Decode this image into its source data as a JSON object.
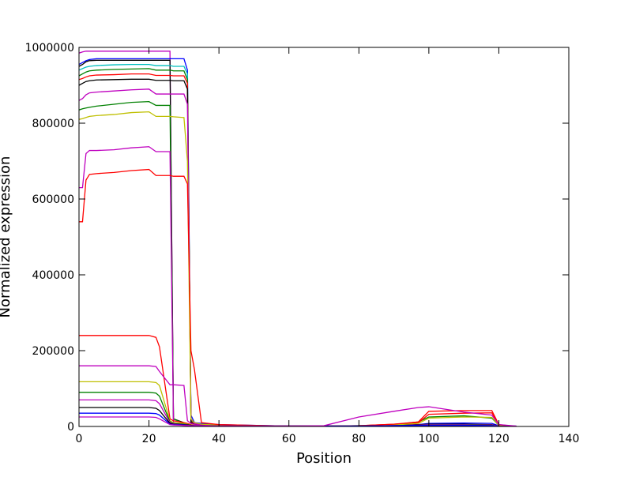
{
  "chart_data": {
    "type": "line",
    "xlabel": "Position",
    "ylabel": "Normalized expression",
    "xlim": [
      0,
      140
    ],
    "ylim": [
      0,
      1000000
    ],
    "xticks": [
      0,
      20,
      40,
      60,
      80,
      100,
      120,
      140
    ],
    "yticks": [
      0,
      200000,
      400000,
      600000,
      800000,
      1000000
    ],
    "grid": false,
    "x": [
      0,
      1,
      2,
      3,
      5,
      10,
      15,
      20,
      22,
      23,
      26,
      27,
      30,
      31,
      32,
      33,
      35,
      40,
      60,
      70,
      80,
      90,
      97,
      100,
      110,
      118,
      120,
      125
    ],
    "series": [
      {
        "color": "#bf00bf",
        "values": [
          985000,
          988000,
          990000,
          990000,
          990000,
          990000,
          990000,
          990000,
          990000,
          990000,
          990000,
          5000,
          3000,
          2000,
          2000,
          2000,
          2000,
          1000,
          1000,
          1000,
          1000,
          2000,
          3000,
          3000,
          3000,
          2000,
          0,
          0
        ]
      },
      {
        "color": "#0000ff",
        "values": [
          955000,
          960000,
          965000,
          968000,
          970000,
          970000,
          970000,
          970000,
          970000,
          970000,
          970000,
          970000,
          970000,
          940000,
          30000,
          10000,
          8000,
          5000,
          1000,
          1000,
          2000,
          3000,
          5000,
          8000,
          9000,
          8000,
          2000,
          1000
        ]
      },
      {
        "color": "#000000",
        "values": [
          950000,
          955000,
          962000,
          965000,
          966000,
          966000,
          966000,
          966000,
          966000,
          966000,
          966000,
          20000,
          10000,
          5000,
          3000,
          2000,
          2000,
          1000,
          1000,
          1000,
          1000,
          2000,
          3000,
          4000,
          4000,
          3000,
          0,
          0
        ]
      },
      {
        "color": "#00bfbf",
        "values": [
          940000,
          944000,
          948000,
          950000,
          952000,
          954000,
          955000,
          955000,
          952000,
          952000,
          952000,
          950000,
          950000,
          930000,
          20000,
          8000,
          5000,
          3000,
          1000,
          1000,
          1000,
          2000,
          3000,
          4000,
          4000,
          3000,
          0,
          0
        ]
      },
      {
        "color": "#008000",
        "values": [
          925000,
          930000,
          935000,
          938000,
          940000,
          942000,
          943000,
          944000,
          940000,
          940000,
          940000,
          938000,
          938000,
          915000,
          15000,
          8000,
          5000,
          3000,
          1000,
          1000,
          2000,
          5000,
          12000,
          25000,
          28000,
          22000,
          3000,
          0
        ]
      },
      {
        "color": "#ff0000",
        "values": [
          915000,
          918000,
          922000,
          925000,
          927000,
          928000,
          930000,
          930000,
          926000,
          926000,
          926000,
          925000,
          925000,
          905000,
          12000,
          6000,
          4000,
          3000,
          1000,
          1000,
          2000,
          6000,
          10000,
          32000,
          35000,
          36000,
          4000,
          0
        ]
      },
      {
        "color": "#000000",
        "values": [
          900000,
          905000,
          910000,
          912000,
          914000,
          915000,
          916000,
          916000,
          913000,
          913000,
          913000,
          912000,
          912000,
          890000,
          10000,
          5000,
          3000,
          2000,
          1000,
          1000,
          1000,
          3000,
          5000,
          6000,
          6000,
          5000,
          1000,
          0
        ]
      },
      {
        "color": "#bf00bf",
        "values": [
          860000,
          865000,
          875000,
          880000,
          882000,
          885000,
          888000,
          890000,
          877000,
          877000,
          877000,
          877000,
          877000,
          850000,
          20000,
          8000,
          5000,
          3000,
          1000,
          1000,
          1000,
          2000,
          4000,
          5000,
          5000,
          4000,
          1000,
          0
        ]
      },
      {
        "color": "#008000",
        "values": [
          835000,
          838000,
          840000,
          842000,
          845000,
          850000,
          855000,
          857000,
          847000,
          847000,
          847000,
          20000,
          8000,
          5000,
          3000,
          2000,
          2000,
          1000,
          1000,
          1000,
          1000,
          2000,
          3000,
          4000,
          4000,
          3000,
          0,
          0
        ]
      },
      {
        "color": "#bfbf00",
        "values": [
          810000,
          812000,
          815000,
          818000,
          820000,
          823000,
          828000,
          830000,
          818000,
          818000,
          818000,
          817000,
          815000,
          700000,
          20000,
          10000,
          6000,
          3000,
          1000,
          1000,
          2000,
          4000,
          8000,
          22000,
          25000,
          24000,
          3000,
          0
        ]
      },
      {
        "color": "#bf00bf",
        "values": [
          630000,
          630000,
          720000,
          728000,
          728000,
          730000,
          735000,
          738000,
          725000,
          725000,
          725000,
          10000,
          6000,
          4000,
          3000,
          2000,
          2000,
          1000,
          1000,
          1000,
          1000,
          2000,
          3000,
          3000,
          3000,
          2000,
          0,
          0
        ]
      },
      {
        "color": "#ff0000",
        "values": [
          540000,
          540000,
          650000,
          665000,
          667000,
          670000,
          675000,
          678000,
          662000,
          662000,
          662000,
          660000,
          660000,
          640000,
          200000,
          150000,
          10000,
          5000,
          1000,
          1000,
          2000,
          6000,
          12000,
          40000,
          42000,
          42000,
          5000,
          0
        ]
      },
      {
        "color": "#ff0000",
        "values": [
          240000,
          240000,
          240000,
          240000,
          240000,
          240000,
          240000,
          240000,
          235000,
          210000,
          20000,
          15000,
          10000,
          8000,
          5000,
          3000,
          2000,
          1000,
          1000,
          1000,
          1000,
          2000,
          3000,
          3000,
          3000,
          2000,
          0,
          0
        ]
      },
      {
        "color": "#bf00bf",
        "values": [
          160000,
          160000,
          160000,
          160000,
          160000,
          160000,
          160000,
          160000,
          158000,
          145000,
          110000,
          110000,
          108000,
          15000,
          8000,
          5000,
          3000,
          1000,
          1000,
          1000,
          1000,
          2000,
          3000,
          3000,
          3000,
          2000,
          0,
          0
        ]
      },
      {
        "color": "#bfbf00",
        "values": [
          118000,
          118000,
          118000,
          118000,
          118000,
          118000,
          118000,
          118000,
          116000,
          108000,
          15000,
          10000,
          8000,
          6000,
          4000,
          3000,
          2000,
          1000,
          1000,
          1000,
          1000,
          2000,
          3000,
          3000,
          3000,
          2000,
          0,
          0
        ]
      },
      {
        "color": "#008000",
        "values": [
          90000,
          90000,
          90000,
          90000,
          90000,
          90000,
          90000,
          90000,
          88000,
          80000,
          12000,
          8000,
          6000,
          5000,
          3000,
          2000,
          2000,
          1000,
          1000,
          1000,
          1000,
          2000,
          3000,
          3000,
          3000,
          2000,
          0,
          0
        ]
      },
      {
        "color": "#bf00bf",
        "values": [
          70000,
          70000,
          70000,
          70000,
          70000,
          70000,
          70000,
          70000,
          68000,
          60000,
          10000,
          7000,
          5000,
          4000,
          3000,
          2000,
          2000,
          1000,
          1000,
          1000,
          1000,
          2000,
          3000,
          3000,
          3000,
          2000,
          0,
          0
        ]
      },
      {
        "color": "#000000",
        "values": [
          50000,
          50000,
          50000,
          50000,
          50000,
          50000,
          50000,
          50000,
          48000,
          42000,
          8000,
          6000,
          5000,
          4000,
          3000,
          2000,
          2000,
          1000,
          1000,
          1000,
          1000,
          2000,
          3000,
          3000,
          3000,
          2000,
          0,
          0
        ]
      },
      {
        "color": "#0000ff",
        "values": [
          35000,
          35000,
          35000,
          35000,
          35000,
          35000,
          35000,
          35000,
          34000,
          30000,
          6000,
          5000,
          4000,
          3000,
          2000,
          2000,
          2000,
          1000,
          1000,
          1000,
          1000,
          2000,
          3000,
          3000,
          3000,
          2000,
          0,
          0
        ]
      },
      {
        "color": "#bf00bf",
        "values": [
          25000,
          25000,
          25000,
          25000,
          25000,
          25000,
          25000,
          25000,
          24000,
          20000,
          5000,
          4000,
          3000,
          3000,
          2000,
          2000,
          2000,
          1000,
          1000,
          2000,
          25000,
          40000,
          50000,
          52000,
          38000,
          30000,
          5000,
          1000
        ]
      }
    ]
  }
}
